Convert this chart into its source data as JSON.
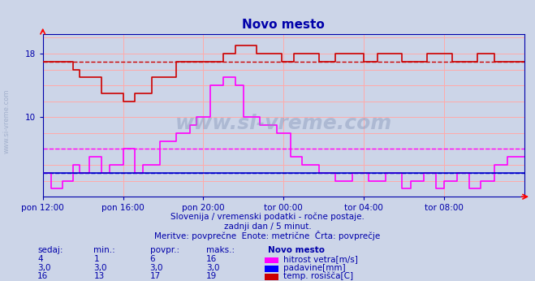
{
  "title": "Novo mesto",
  "bg_color": "#ccd5e8",
  "plot_bg_color": "#ccd5e8",
  "grid_color": "#ffaaaa",
  "axis_color": "#0000aa",
  "title_color": "#0000aa",
  "ylim": [
    0,
    20.5
  ],
  "ytick_vals": [
    10,
    18
  ],
  "xtick_pos": [
    0,
    48,
    96,
    144,
    192,
    240
  ],
  "xtick_labels": [
    "pon 12:00",
    "pon 16:00",
    "pon 20:00",
    "tor 00:00",
    "tor 04:00",
    "tor 08:00"
  ],
  "avg_red": 17.0,
  "avg_magenta": 6.0,
  "avg_blue": 3.0,
  "subtitle1": "Slovenija / vremenski podatki - ročne postaje.",
  "subtitle2": "zadnji dan / 5 minut.",
  "subtitle3": "Meritve: povprečne  Enote: metrične  Črta: povprečje",
  "table_header_cols": [
    "sedaj:",
    "min.:",
    "povpr.:",
    "maks.:",
    "Novo mesto"
  ],
  "table_rows": [
    {
      "sedaj": "4",
      "min": "1",
      "povpr": "6",
      "maks": "16",
      "label": "hitrost vetra[m/s]",
      "color": "#ff00ff"
    },
    {
      "sedaj": "3,0",
      "min": "3,0",
      "povpr": "3,0",
      "maks": "3,0",
      "label": "padavine[mm]",
      "color": "#0000ff"
    },
    {
      "sedaj": "16",
      "min": "13",
      "povpr": "17",
      "maks": "19",
      "label": "temp. rosišča[C]",
      "color": "#cc0000"
    }
  ],
  "watermark": "www.si-vreme.com",
  "watermark_color": "#8899bb",
  "sidebar_text": "www.si-vreme.com"
}
